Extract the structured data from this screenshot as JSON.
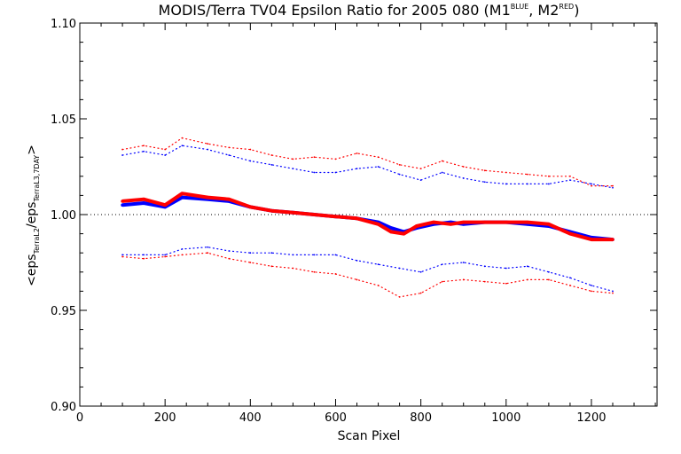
{
  "chart_data": {
    "type": "scatter",
    "title": {
      "main": "MODIS/Terra TV04 Epsilon Ratio for 2005 080 (M1",
      "sup1": "BLUE",
      "mid": ", M2",
      "sup2": "RED",
      "end": ")"
    },
    "xlabel": "Scan Pixel",
    "ylabel": {
      "prefix": "<eps",
      "sub1": "TerraL2",
      "mid": "/eps",
      "sub2": "TerraL3,7DAY",
      "suffix": ">"
    },
    "xlim": [
      0,
      1354
    ],
    "ylim": [
      0.9,
      1.1
    ],
    "xticks": [
      0,
      200,
      400,
      600,
      800,
      1000,
      1200
    ],
    "xtick_labels": [
      "0",
      "200",
      "400",
      "600",
      "800",
      "1000",
      "1200"
    ],
    "yticks": [
      0.9,
      0.95,
      1.0,
      1.05,
      1.1
    ],
    "ytick_labels": [
      "0.90",
      "0.95",
      "1.00",
      "1.05",
      "1.10"
    ],
    "reference_line": 1.0,
    "colors": {
      "M1": "#0000ff",
      "M2": "#ff0000",
      "axes": "#000000"
    },
    "series": [
      {
        "key": "M1",
        "style": "thick",
        "x": [
          100,
          150,
          200,
          240,
          300,
          350,
          400,
          450,
          500,
          550,
          600,
          650,
          700,
          730,
          760,
          790,
          830,
          870,
          900,
          950,
          1000,
          1050,
          1100,
          1150,
          1200,
          1250
        ],
        "values": [
          1.005,
          1.006,
          1.004,
          1.009,
          1.008,
          1.007,
          1.004,
          1.002,
          1.001,
          1.0,
          0.999,
          0.998,
          0.996,
          0.993,
          0.991,
          0.993,
          0.995,
          0.996,
          0.995,
          0.996,
          0.996,
          0.995,
          0.994,
          0.991,
          0.988,
          0.987
        ]
      },
      {
        "key": "M2",
        "style": "thick",
        "x": [
          100,
          150,
          200,
          240,
          300,
          350,
          400,
          450,
          500,
          550,
          600,
          650,
          700,
          730,
          760,
          790,
          830,
          870,
          900,
          950,
          1000,
          1050,
          1100,
          1150,
          1200,
          1250
        ],
        "values": [
          1.007,
          1.008,
          1.005,
          1.011,
          1.009,
          1.008,
          1.004,
          1.002,
          1.001,
          1.0,
          0.999,
          0.998,
          0.995,
          0.991,
          0.99,
          0.994,
          0.996,
          0.995,
          0.996,
          0.996,
          0.996,
          0.996,
          0.995,
          0.99,
          0.987,
          0.987
        ]
      },
      {
        "key": "M1",
        "style": "dotted",
        "x": [
          100,
          150,
          200,
          240,
          300,
          350,
          400,
          450,
          500,
          550,
          600,
          650,
          700,
          750,
          800,
          850,
          900,
          950,
          1000,
          1050,
          1100,
          1150,
          1200,
          1250
        ],
        "values": [
          1.031,
          1.033,
          1.031,
          1.036,
          1.034,
          1.031,
          1.028,
          1.026,
          1.024,
          1.022,
          1.022,
          1.024,
          1.025,
          1.021,
          1.018,
          1.022,
          1.019,
          1.017,
          1.016,
          1.016,
          1.016,
          1.018,
          1.016,
          1.014
        ]
      },
      {
        "key": "M2",
        "style": "dotted",
        "x": [
          100,
          150,
          200,
          240,
          300,
          350,
          400,
          450,
          500,
          550,
          600,
          650,
          700,
          750,
          800,
          850,
          900,
          950,
          1000,
          1050,
          1100,
          1150,
          1200,
          1250
        ],
        "values": [
          1.034,
          1.036,
          1.034,
          1.04,
          1.037,
          1.035,
          1.034,
          1.031,
          1.029,
          1.03,
          1.029,
          1.032,
          1.03,
          1.026,
          1.024,
          1.028,
          1.025,
          1.023,
          1.022,
          1.021,
          1.02,
          1.02,
          1.015,
          1.015
        ]
      },
      {
        "key": "M1",
        "style": "dotted",
        "x": [
          100,
          150,
          200,
          240,
          300,
          350,
          400,
          450,
          500,
          550,
          600,
          650,
          700,
          750,
          800,
          850,
          900,
          950,
          1000,
          1050,
          1100,
          1150,
          1200,
          1250
        ],
        "values": [
          0.979,
          0.979,
          0.979,
          0.982,
          0.983,
          0.981,
          0.98,
          0.98,
          0.979,
          0.979,
          0.979,
          0.976,
          0.974,
          0.972,
          0.97,
          0.974,
          0.975,
          0.973,
          0.972,
          0.973,
          0.97,
          0.967,
          0.963,
          0.96
        ]
      },
      {
        "key": "M2",
        "style": "dotted",
        "x": [
          100,
          150,
          200,
          240,
          300,
          350,
          400,
          450,
          500,
          550,
          600,
          650,
          700,
          750,
          800,
          850,
          900,
          950,
          1000,
          1050,
          1100,
          1150,
          1200,
          1250
        ],
        "values": [
          0.978,
          0.977,
          0.978,
          0.979,
          0.98,
          0.977,
          0.975,
          0.973,
          0.972,
          0.97,
          0.969,
          0.966,
          0.963,
          0.957,
          0.959,
          0.965,
          0.966,
          0.965,
          0.964,
          0.966,
          0.966,
          0.963,
          0.96,
          0.959
        ]
      }
    ]
  }
}
